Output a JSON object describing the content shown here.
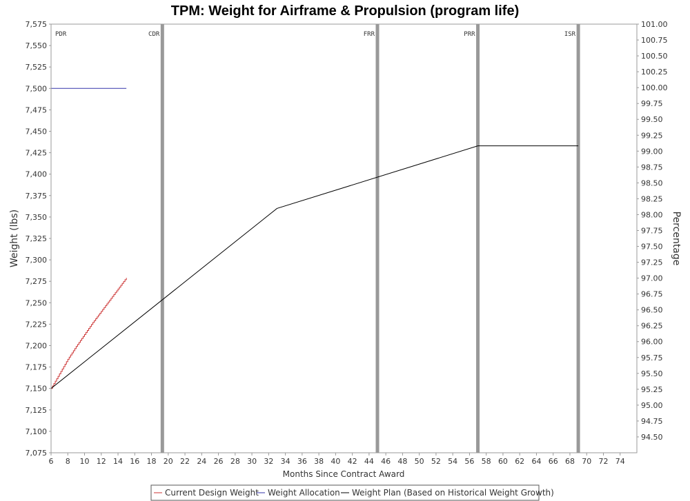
{
  "chart_data": {
    "type": "line",
    "title": "TPM: Weight for Airframe & Propulsion (program life)",
    "xlabel": "Months Since Contract Award",
    "ylabel": "Weight (lbs)",
    "y2label": "Percentage",
    "xlim": [
      6,
      76
    ],
    "ylim": [
      7075,
      7575
    ],
    "y2lim": [
      94.25,
      101.0
    ],
    "x_ticks": [
      6,
      8,
      10,
      12,
      14,
      16,
      18,
      20,
      22,
      24,
      26,
      28,
      30,
      32,
      34,
      36,
      38,
      40,
      42,
      44,
      46,
      48,
      50,
      52,
      54,
      56,
      58,
      60,
      62,
      64,
      66,
      68,
      70,
      72,
      74
    ],
    "y_ticks": [
      "7,075",
      "7,100",
      "7,125",
      "7,150",
      "7,175",
      "7,200",
      "7,225",
      "7,250",
      "7,275",
      "7,300",
      "7,325",
      "7,350",
      "7,375",
      "7,400",
      "7,425",
      "7,450",
      "7,475",
      "7,500",
      "7,525",
      "7,550",
      "7,575"
    ],
    "y_tick_values": [
      7075,
      7100,
      7125,
      7150,
      7175,
      7200,
      7225,
      7250,
      7275,
      7300,
      7325,
      7350,
      7375,
      7400,
      7425,
      7450,
      7475,
      7500,
      7525,
      7550,
      7575
    ],
    "y2_ticks": [
      "94.50",
      "94.75",
      "95.00",
      "95.25",
      "95.50",
      "95.75",
      "96.00",
      "96.25",
      "96.50",
      "96.75",
      "97.00",
      "97.25",
      "97.50",
      "97.75",
      "98.00",
      "98.25",
      "98.50",
      "98.75",
      "99.00",
      "99.25",
      "99.50",
      "99.75",
      "100.00",
      "100.25",
      "100.50",
      "100.75",
      "101.00"
    ],
    "y2_tick_values": [
      94.5,
      94.75,
      95.0,
      95.25,
      95.5,
      95.75,
      96.0,
      96.25,
      96.5,
      96.75,
      97.0,
      97.25,
      97.5,
      97.75,
      98.0,
      98.25,
      98.5,
      98.75,
      99.0,
      99.25,
      99.5,
      99.75,
      100.0,
      100.25,
      100.5,
      100.75,
      101.0
    ],
    "milestones": [
      {
        "label": "PDR",
        "x": 6
      },
      {
        "label": "CDR",
        "x": 19.3
      },
      {
        "label": "FRR",
        "x": 45
      },
      {
        "label": "PRR",
        "x": 57
      },
      {
        "label": "ISR",
        "x": 69
      }
    ],
    "series": [
      {
        "name": "Current Design Weight",
        "color": "#cc3333",
        "step": true,
        "x": [
          6,
          7,
          8,
          9,
          10,
          11,
          12,
          13,
          14,
          15
        ],
        "y": [
          7150,
          7167,
          7184,
          7199,
          7213,
          7227,
          7240,
          7253,
          7266,
          7279
        ]
      },
      {
        "name": "Weight Allocation",
        "color": "#3333aa",
        "step": false,
        "x": [
          6,
          15
        ],
        "y": [
          7500,
          7500
        ]
      },
      {
        "name": "Weight Plan (Based on Historical Weight Growth)",
        "color": "#000000",
        "step": false,
        "x": [
          6,
          33,
          57,
          69
        ],
        "y": [
          7150,
          7360,
          7433,
          7433
        ]
      }
    ],
    "legend_position": "bottom-center",
    "grid": false
  }
}
